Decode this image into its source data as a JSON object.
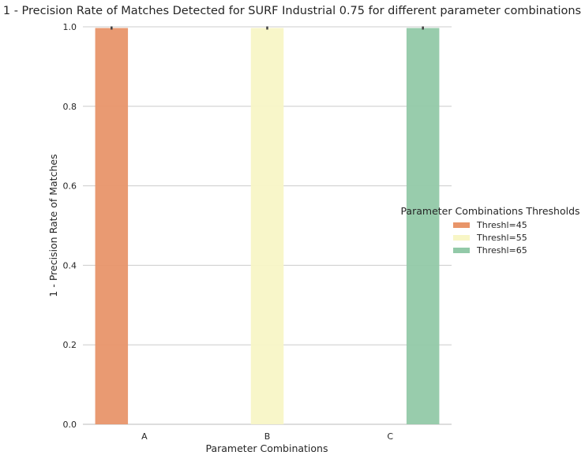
{
  "chart_data": {
    "type": "bar",
    "title": "1 - Precision Rate of Matches Detected for SURF Industrial 0.75 for different parameter combinations",
    "xlabel": "Parameter Combinations",
    "ylabel": "1 - Precision Rate of Matches",
    "categories": [
      "A",
      "B",
      "C"
    ],
    "ylim": [
      0,
      1.0
    ],
    "yticks": [
      "0.0",
      "0.2",
      "0.4",
      "0.6",
      "0.8",
      "1.0"
    ],
    "grid": true,
    "legend": {
      "title": "Parameter Combinations Thresholds",
      "placement": "center-right"
    },
    "series": [
      {
        "name": "Threshl=45",
        "color": "#e8956a",
        "values": [
          0.997,
          null,
          null
        ]
      },
      {
        "name": "Threshl=55",
        "color": "#f8f6c6",
        "values": [
          null,
          0.997,
          null
        ]
      },
      {
        "name": "Threshl=65",
        "color": "#92c9a8",
        "values": [
          null,
          null,
          0.997
        ]
      }
    ]
  }
}
